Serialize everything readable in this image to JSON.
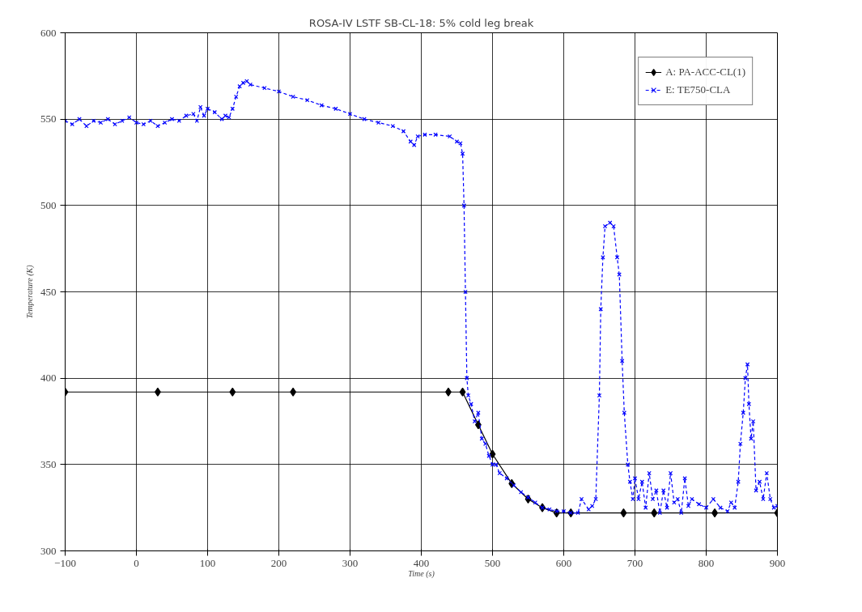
{
  "chart_data": {
    "type": "line",
    "title": "ROSA-IV LSTF SB-CL-18: 5% cold leg break",
    "xlabel": "Time (s)",
    "ylabel": "Temperature (K)",
    "xlim": [
      -100,
      900
    ],
    "xticks": [
      -100,
      0,
      100,
      200,
      300,
      400,
      500,
      600,
      700,
      800,
      900
    ],
    "ylim": [
      300,
      600
    ],
    "yticks": [
      300,
      350,
      400,
      450,
      500,
      550,
      600
    ],
    "grid": true,
    "legend": "top right",
    "series": [
      {
        "name": "A: PA-ACC-CL(1)",
        "color": "#000000",
        "marker": "diamond",
        "line_style": "solid",
        "x": [
          -100,
          30,
          135,
          220,
          438,
          458,
          480,
          500,
          527,
          550,
          570,
          590,
          610,
          684,
          727,
          812,
          900
        ],
        "values": [
          392,
          392,
          392,
          392,
          392,
          392,
          373,
          356,
          339,
          330,
          325,
          322,
          322,
          322,
          322,
          322,
          322
        ]
      },
      {
        "name": "E: TE750-CLA",
        "color": "#0000ff",
        "marker": "cross",
        "line_style": "dashed",
        "x": [
          -100,
          -90,
          -80,
          -70,
          -60,
          -50,
          -40,
          -30,
          -20,
          -10,
          0,
          10,
          20,
          30,
          40,
          50,
          60,
          70,
          80,
          85,
          90,
          95,
          100,
          110,
          120,
          125,
          130,
          135,
          140,
          145,
          150,
          155,
          160,
          180,
          200,
          220,
          240,
          260,
          280,
          300,
          320,
          340,
          360,
          375,
          385,
          390,
          395,
          405,
          420,
          440,
          450,
          455,
          458,
          460,
          462,
          464,
          466,
          470,
          475,
          480,
          485,
          490,
          495,
          500,
          505,
          510,
          520,
          530,
          540,
          550,
          560,
          570,
          580,
          590,
          600,
          610,
          620,
          625,
          635,
          640,
          645,
          650,
          652,
          655,
          658,
          665,
          670,
          675,
          678,
          682,
          685,
          690,
          693,
          697,
          700,
          705,
          710,
          715,
          720,
          725,
          730,
          735,
          740,
          745,
          750,
          755,
          760,
          765,
          770,
          775,
          780,
          790,
          800,
          810,
          820,
          830,
          835,
          840,
          845,
          848,
          852,
          855,
          858,
          860,
          863,
          866,
          870,
          875,
          880,
          885,
          890,
          895,
          900
        ],
        "values": [
          549,
          547,
          550,
          546,
          549,
          548,
          550,
          547,
          549,
          551,
          548,
          547,
          549,
          546,
          548,
          550,
          549,
          552,
          553,
          549,
          557,
          552,
          556,
          554,
          550,
          552,
          551,
          556,
          563,
          569,
          571,
          572,
          570,
          568,
          566,
          563,
          561,
          558,
          556,
          553,
          550,
          548,
          546,
          543,
          537,
          535,
          540,
          541,
          541,
          540,
          537,
          536,
          530,
          500,
          450,
          400,
          390,
          385,
          375,
          380,
          365,
          362,
          355,
          350,
          350,
          345,
          342,
          338,
          334,
          331,
          328,
          325,
          324,
          323,
          323,
          322,
          322,
          330,
          324,
          326,
          330,
          390,
          440,
          470,
          488,
          490,
          488,
          470,
          460,
          410,
          380,
          350,
          340,
          330,
          342,
          330,
          340,
          325,
          345,
          330,
          335,
          322,
          335,
          325,
          345,
          328,
          330,
          322,
          342,
          326,
          330,
          327,
          325,
          330,
          325,
          323,
          328,
          325,
          340,
          362,
          380,
          400,
          408,
          385,
          365,
          375,
          335,
          340,
          330,
          345,
          330,
          325,
          326
        ]
      }
    ]
  }
}
